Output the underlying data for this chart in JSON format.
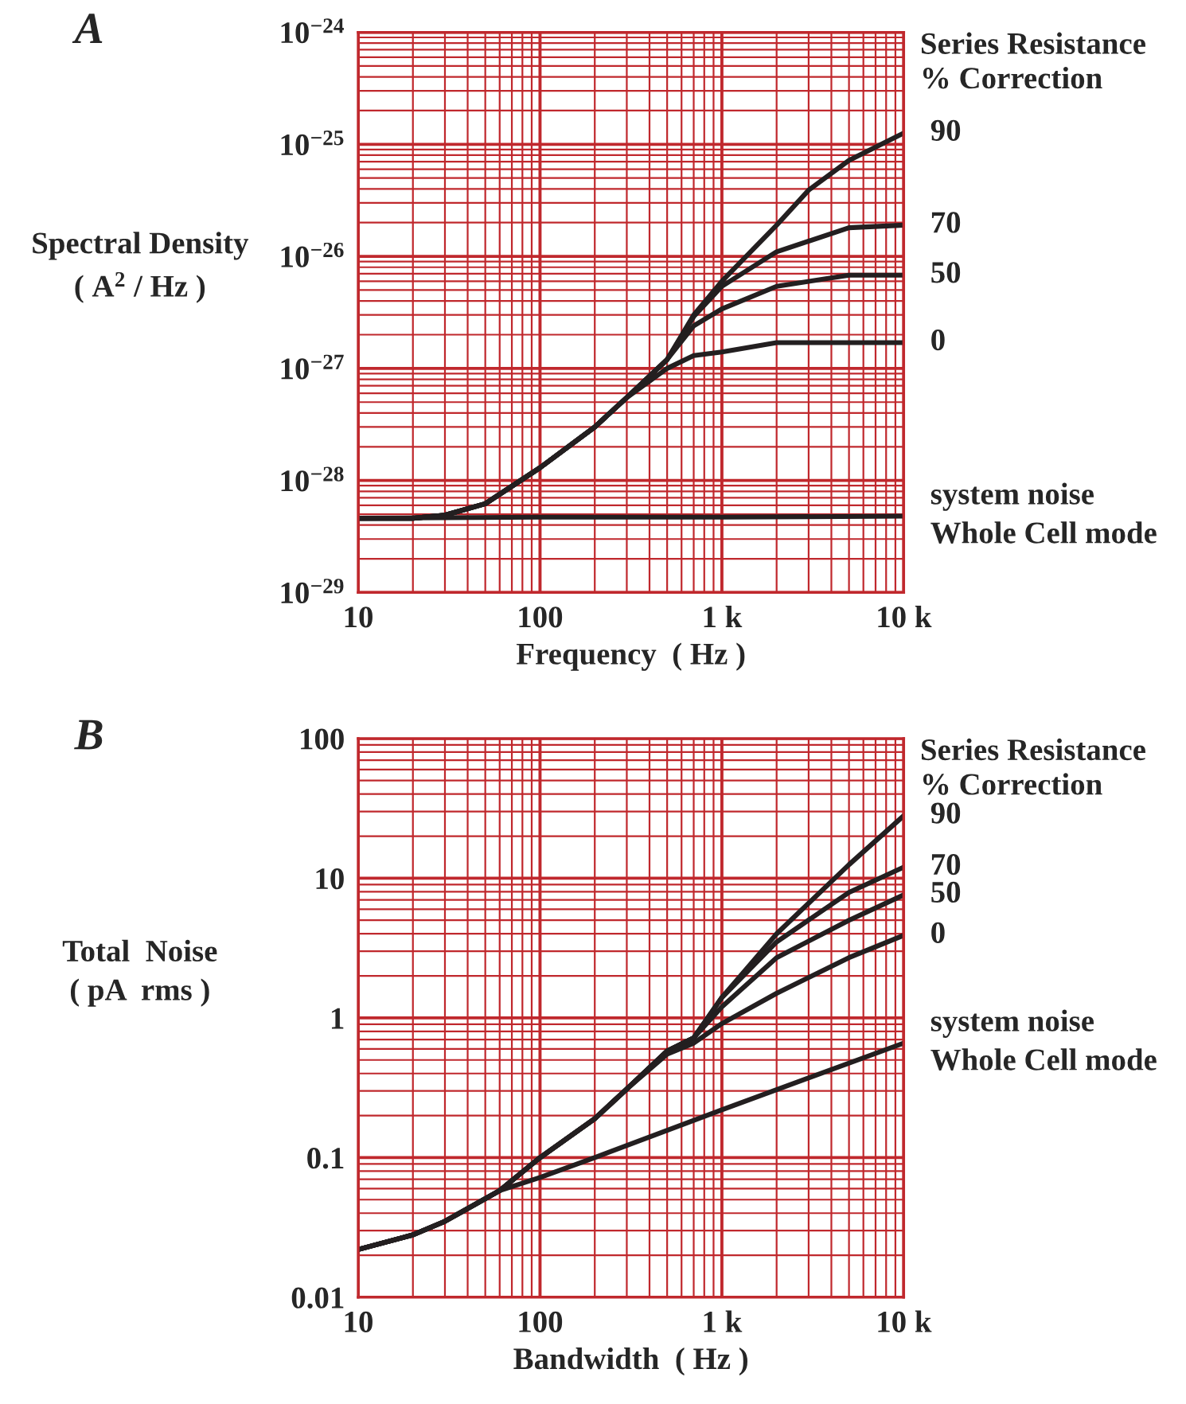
{
  "chart_data": [
    {
      "type": "line",
      "title": "A",
      "xlabel": "Frequency  ( Hz )",
      "ylabel": "Spectral Density\n( A$^{2}$ / Hz )",
      "legend_title": "Series Resistance\n% Correction",
      "log": "xy",
      "grid": true,
      "legend": false,
      "line_style": "solid",
      "marker": "none",
      "xlim": [
        10,
        10000
      ],
      "xticks": [
        10,
        {
          "value": 20,
          "label": null
        },
        {
          "value": 30,
          "label": null
        },
        {
          "value": 40,
          "label": null
        },
        {
          "value": 50,
          "label": null
        },
        {
          "value": 60,
          "label": null
        },
        {
          "value": 70,
          "label": null
        },
        {
          "value": 80,
          "label": null
        },
        {
          "value": 90,
          "label": null
        },
        100,
        {
          "value": 200,
          "label": null
        },
        {
          "value": 300,
          "label": null
        },
        {
          "value": 400,
          "label": null
        },
        {
          "value": 500,
          "label": null
        },
        {
          "value": 600,
          "label": null
        },
        {
          "value": 700,
          "label": null
        },
        {
          "value": 800,
          "label": null
        },
        {
          "value": 900,
          "label": null
        },
        {
          "value": 1000,
          "label": "1 k"
        },
        {
          "value": 2000,
          "label": null
        },
        {
          "value": 3000,
          "label": null
        },
        {
          "value": 4000,
          "label": null
        },
        {
          "value": 5000,
          "label": null
        },
        {
          "value": 6000,
          "label": null
        },
        {
          "value": 7000,
          "label": null
        },
        {
          "value": 8000,
          "label": null
        },
        {
          "value": 9000,
          "label": null
        },
        {
          "value": 10000,
          "label": "10 k"
        }
      ],
      "ylim": [
        1e-29,
        1e-24
      ],
      "yticks": [
        {
          "value": 1e-29,
          "label": "10$^{−29}$"
        },
        {
          "value": 2e-29,
          "label": null
        },
        {
          "value": 3e-29,
          "label": null
        },
        {
          "value": 4e-29,
          "label": null
        },
        {
          "value": 5e-29,
          "label": null
        },
        {
          "value": 6e-29,
          "label": null
        },
        {
          "value": 7e-29,
          "label": null
        },
        {
          "value": 8e-29,
          "label": null
        },
        {
          "value": 9e-29,
          "label": null
        },
        {
          "value": 1e-28,
          "label": "10$^{−28}$"
        },
        {
          "value": 2e-28,
          "label": null
        },
        {
          "value": 3e-28,
          "label": null
        },
        {
          "value": 4e-28,
          "label": null
        },
        {
          "value": 5e-28,
          "label": null
        },
        {
          "value": 6e-28,
          "label": null
        },
        {
          "value": 7e-28,
          "label": null
        },
        {
          "value": 8e-28,
          "label": null
        },
        {
          "value": 9e-28,
          "label": null
        },
        {
          "value": 1e-27,
          "label": "10$^{−27}$"
        },
        {
          "value": 2e-27,
          "label": null
        },
        {
          "value": 3e-27,
          "label": null
        },
        {
          "value": 4e-27,
          "label": null
        },
        {
          "value": 5e-27,
          "label": null
        },
        {
          "value": 6e-27,
          "label": null
        },
        {
          "value": 7e-27,
          "label": null
        },
        {
          "value": 8e-27,
          "label": null
        },
        {
          "value": 9e-27,
          "label": null
        },
        {
          "value": 1e-26,
          "label": "10$^{−26}$"
        },
        {
          "value": 2e-26,
          "label": null
        },
        {
          "value": 3e-26,
          "label": null
        },
        {
          "value": 4e-26,
          "label": null
        },
        {
          "value": 5e-26,
          "label": null
        },
        {
          "value": 6e-26,
          "label": null
        },
        {
          "value": 7e-26,
          "label": null
        },
        {
          "value": 8e-26,
          "label": null
        },
        {
          "value": 9e-26,
          "label": null
        },
        {
          "value": 1e-25,
          "label": "10$^{−25}$"
        },
        {
          "value": 2e-25,
          "label": null
        },
        {
          "value": 3e-25,
          "label": null
        },
        {
          "value": 4e-25,
          "label": null
        },
        {
          "value": 5e-25,
          "label": null
        },
        {
          "value": 6e-25,
          "label": null
        },
        {
          "value": 7e-25,
          "label": null
        },
        {
          "value": 8e-25,
          "label": null
        },
        {
          "value": 9e-25,
          "label": null
        },
        {
          "value": 1e-24,
          "label": "10$^{−24}$"
        }
      ],
      "series": [
        {
          "name": "90",
          "color": "#231f20",
          "x": [
            10,
            20,
            30,
            50,
            100,
            200,
            300,
            500,
            700,
            1000,
            2000,
            3000,
            5000,
            10000
          ],
          "values": [
            4.6e-29,
            4.6e-29,
            4.9e-29,
            6.2e-29,
            1.3e-28,
            3e-28,
            5.5e-28,
            1.2e-27,
            3e-27,
            6e-27,
            1.9e-26,
            3.9e-26,
            7.2e-26,
            1.26e-25
          ]
        },
        {
          "name": "70",
          "color": "#231f20",
          "x": [
            10,
            20,
            30,
            50,
            100,
            200,
            300,
            500,
            700,
            1000,
            2000,
            5000,
            10000
          ],
          "values": [
            4.6e-29,
            4.6e-29,
            4.9e-29,
            6.2e-29,
            1.3e-28,
            3e-28,
            5.5e-28,
            1.2e-27,
            2.9e-27,
            5.4e-27,
            1.1e-26,
            1.8e-26,
            1.9e-26
          ]
        },
        {
          "name": "50",
          "color": "#231f20",
          "x": [
            10,
            20,
            30,
            50,
            100,
            200,
            300,
            500,
            700,
            1000,
            2000,
            5000,
            10000
          ],
          "values": [
            4.6e-29,
            4.6e-29,
            4.9e-29,
            6.2e-29,
            1.3e-28,
            3e-28,
            5.5e-28,
            1.2e-27,
            2.4e-27,
            3.4e-27,
            5.4e-27,
            6.8e-27,
            6.8e-27
          ]
        },
        {
          "name": "0",
          "color": "#231f20",
          "x": [
            10,
            20,
            30,
            50,
            100,
            200,
            300,
            500,
            700,
            1000,
            2000,
            5000,
            10000
          ],
          "values": [
            4.6e-29,
            4.6e-29,
            4.9e-29,
            6.2e-29,
            1.3e-28,
            3e-28,
            5.5e-28,
            1e-27,
            1.3e-27,
            1.4e-27,
            1.7e-27,
            1.7e-27,
            1.7e-27
          ]
        },
        {
          "name": "system noise\nWhole Cell mode",
          "color": "#231f20",
          "x": [
            10,
            100,
            1000,
            10000
          ],
          "values": [
            4.6e-29,
            4.7e-29,
            4.7e-29,
            4.8e-29
          ]
        }
      ]
    },
    {
      "type": "line",
      "title": "B",
      "xlabel": "Bandwidth  ( Hz )",
      "ylabel": "Total  Noise\n( pA  rms )",
      "legend_title": "Series Resistance\n% Correction",
      "log": "xy",
      "grid": true,
      "legend": false,
      "line_style": "solid",
      "marker": "none",
      "xlim": [
        10,
        10000
      ],
      "xticks": [
        10,
        {
          "value": 20,
          "label": null
        },
        {
          "value": 30,
          "label": null
        },
        {
          "value": 40,
          "label": null
        },
        {
          "value": 50,
          "label": null
        },
        {
          "value": 60,
          "label": null
        },
        {
          "value": 70,
          "label": null
        },
        {
          "value": 80,
          "label": null
        },
        {
          "value": 90,
          "label": null
        },
        100,
        {
          "value": 200,
          "label": null
        },
        {
          "value": 300,
          "label": null
        },
        {
          "value": 400,
          "label": null
        },
        {
          "value": 500,
          "label": null
        },
        {
          "value": 600,
          "label": null
        },
        {
          "value": 700,
          "label": null
        },
        {
          "value": 800,
          "label": null
        },
        {
          "value": 900,
          "label": null
        },
        {
          "value": 1000,
          "label": "1 k"
        },
        {
          "value": 2000,
          "label": null
        },
        {
          "value": 3000,
          "label": null
        },
        {
          "value": 4000,
          "label": null
        },
        {
          "value": 5000,
          "label": null
        },
        {
          "value": 6000,
          "label": null
        },
        {
          "value": 7000,
          "label": null
        },
        {
          "value": 8000,
          "label": null
        },
        {
          "value": 9000,
          "label": null
        },
        {
          "value": 10000,
          "label": "10 k"
        }
      ],
      "ylim": [
        0.01,
        100
      ],
      "yticks": [
        0.01,
        {
          "value": 0.02,
          "label": null
        },
        {
          "value": 0.03,
          "label": null
        },
        {
          "value": 0.04,
          "label": null
        },
        {
          "value": 0.05,
          "label": null
        },
        {
          "value": 0.06,
          "label": null
        },
        {
          "value": 0.07,
          "label": null
        },
        {
          "value": 0.08,
          "label": null
        },
        {
          "value": 0.09,
          "label": null
        },
        0.1,
        {
          "value": 0.2,
          "label": null
        },
        {
          "value": 0.3,
          "label": null
        },
        {
          "value": 0.4,
          "label": null
        },
        {
          "value": 0.5,
          "label": null
        },
        {
          "value": 0.6,
          "label": null
        },
        {
          "value": 0.7,
          "label": null
        },
        {
          "value": 0.8,
          "label": null
        },
        {
          "value": 0.9,
          "label": null
        },
        1,
        {
          "value": 2,
          "label": null
        },
        {
          "value": 3,
          "label": null
        },
        {
          "value": 4,
          "label": null
        },
        {
          "value": 5,
          "label": null
        },
        {
          "value": 6,
          "label": null
        },
        {
          "value": 7,
          "label": null
        },
        {
          "value": 8,
          "label": null
        },
        {
          "value": 9,
          "label": null
        },
        10,
        {
          "value": 20,
          "label": null
        },
        {
          "value": 30,
          "label": null
        },
        {
          "value": 40,
          "label": null
        },
        {
          "value": 50,
          "label": null
        },
        {
          "value": 60,
          "label": null
        },
        {
          "value": 70,
          "label": null
        },
        {
          "value": 80,
          "label": null
        },
        {
          "value": 90,
          "label": null
        },
        100
      ],
      "series": [
        {
          "name": "90",
          "color": "#231f20",
          "x": [
            10,
            20,
            30,
            60,
            100,
            200,
            300,
            500,
            700,
            1000,
            2000,
            5000,
            10000
          ],
          "values": [
            0.022,
            0.028,
            0.035,
            0.058,
            0.1,
            0.19,
            0.31,
            0.58,
            0.72,
            1.4,
            4.0,
            12.5,
            28
          ]
        },
        {
          "name": "70",
          "color": "#231f20",
          "x": [
            10,
            20,
            30,
            60,
            100,
            200,
            300,
            500,
            700,
            1000,
            2000,
            5000,
            10000
          ],
          "values": [
            0.022,
            0.028,
            0.035,
            0.058,
            0.1,
            0.19,
            0.31,
            0.58,
            0.72,
            1.4,
            3.5,
            7.9,
            12
          ]
        },
        {
          "name": "50",
          "color": "#231f20",
          "x": [
            10,
            20,
            30,
            60,
            100,
            200,
            300,
            500,
            700,
            1000,
            2000,
            5000,
            10000
          ],
          "values": [
            0.022,
            0.028,
            0.035,
            0.058,
            0.1,
            0.19,
            0.31,
            0.58,
            0.72,
            1.2,
            2.7,
            5.0,
            7.6
          ]
        },
        {
          "name": "0",
          "color": "#231f20",
          "x": [
            10,
            20,
            30,
            60,
            100,
            200,
            300,
            500,
            700,
            1000,
            2000,
            5000,
            10000
          ],
          "values": [
            0.022,
            0.028,
            0.035,
            0.058,
            0.1,
            0.19,
            0.31,
            0.55,
            0.66,
            0.91,
            1.5,
            2.7,
            3.9
          ]
        },
        {
          "name": "system noise\nWhole Cell mode",
          "color": "#231f20",
          "x": [
            10,
            20,
            30,
            60,
            100,
            200,
            1000,
            10000
          ],
          "values": [
            0.022,
            0.028,
            0.035,
            0.058,
            0.072,
            0.1,
            0.22,
            0.66
          ]
        }
      ]
    }
  ]
}
